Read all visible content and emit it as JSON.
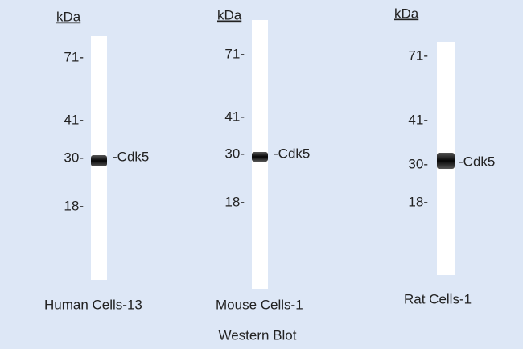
{
  "panels": [
    {
      "unit": "kDa",
      "markers": [
        "71-",
        "41-",
        "30-",
        "18-"
      ],
      "band_label": "-Cdk5",
      "caption": "Human Cells-13"
    },
    {
      "unit": "kDa",
      "markers": [
        "71-",
        "41-",
        "30-",
        "18-"
      ],
      "band_label": "-Cdk5",
      "caption": "Mouse Cells-1"
    },
    {
      "unit": "kDa",
      "markers": [
        "71-",
        "41-",
        "30-",
        "18-"
      ],
      "band_label": "-Cdk5",
      "caption": "Rat Cells-1"
    }
  ],
  "footer": "Western Blot"
}
